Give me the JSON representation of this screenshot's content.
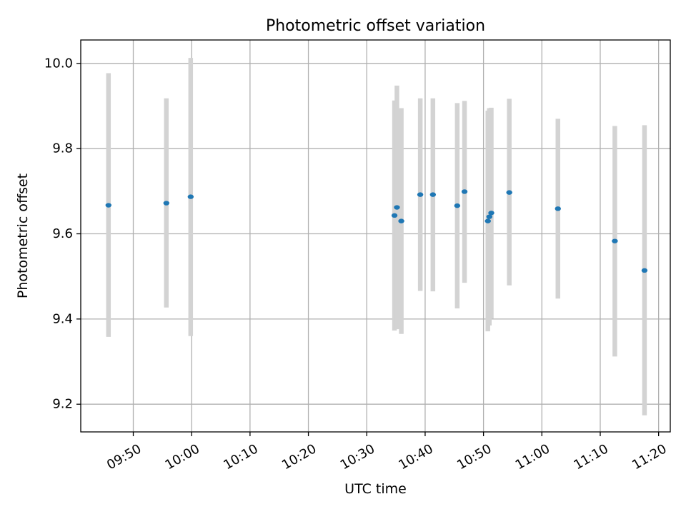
{
  "chart_data": {
    "type": "scatter",
    "title": "Photometric offset variation",
    "xlabel": "UTC time",
    "ylabel": "Photometric offset",
    "x_axis_kind": "time",
    "xlim": [
      "09:41",
      "11:22"
    ],
    "ylim": [
      9.135,
      10.055
    ],
    "x_ticks": [
      "09:50",
      "10:00",
      "10:10",
      "10:20",
      "10:30",
      "10:40",
      "10:50",
      "11:00",
      "11:10",
      "11:20"
    ],
    "y_ticks": [
      "9.2",
      "9.4",
      "9.6",
      "9.8",
      "10.0"
    ],
    "grid": true,
    "legend": "none",
    "marker_color": "#1f77b4",
    "errorbar_color": "#d3d3d3",
    "points": [
      {
        "x": "09:45:45",
        "y": 9.667,
        "err_low": 9.358,
        "err_high": 9.977
      },
      {
        "x": "09:55:40",
        "y": 9.672,
        "err_low": 9.427,
        "err_high": 9.918
      },
      {
        "x": "09:59:50",
        "y": 9.687,
        "err_low": 9.36,
        "err_high": 10.013
      },
      {
        "x": "10:34:45",
        "y": 9.643,
        "err_low": 9.373,
        "err_high": 9.913
      },
      {
        "x": "10:35:10",
        "y": 9.662,
        "err_low": 9.376,
        "err_high": 9.948
      },
      {
        "x": "10:35:55",
        "y": 9.63,
        "err_low": 9.365,
        "err_high": 9.895
      },
      {
        "x": "10:39:10",
        "y": 9.692,
        "err_low": 9.466,
        "err_high": 9.918
      },
      {
        "x": "10:41:20",
        "y": 9.692,
        "err_low": 9.465,
        "err_high": 9.918
      },
      {
        "x": "10:45:30",
        "y": 9.666,
        "err_low": 9.425,
        "err_high": 9.907
      },
      {
        "x": "10:46:45",
        "y": 9.699,
        "err_low": 9.485,
        "err_high": 9.912
      },
      {
        "x": "10:50:45",
        "y": 9.63,
        "err_low": 9.371,
        "err_high": 9.889
      },
      {
        "x": "10:51:00",
        "y": 9.64,
        "err_low": 9.385,
        "err_high": 9.895
      },
      {
        "x": "10:51:20",
        "y": 9.649,
        "err_low": 9.401,
        "err_high": 9.896
      },
      {
        "x": "10:54:25",
        "y": 9.697,
        "err_low": 9.479,
        "err_high": 9.917
      },
      {
        "x": "11:02:45",
        "y": 9.659,
        "err_low": 9.448,
        "err_high": 9.87
      },
      {
        "x": "11:12:30",
        "y": 9.583,
        "err_low": 9.312,
        "err_high": 9.853
      },
      {
        "x": "11:17:35",
        "y": 9.514,
        "err_low": 9.174,
        "err_high": 9.855
      }
    ]
  }
}
